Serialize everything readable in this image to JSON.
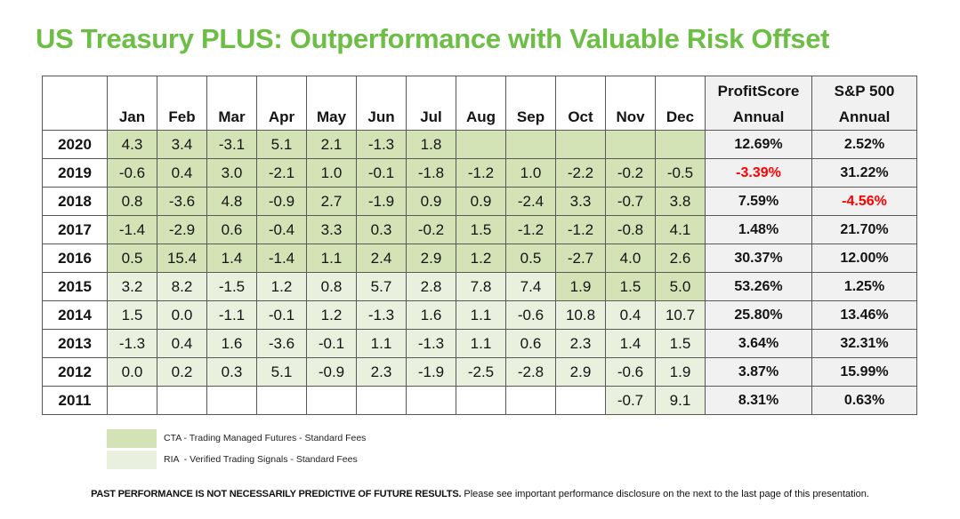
{
  "title": "US Treasury PLUS: Outperformance with Valuable Risk Offset",
  "colors": {
    "accent": "#6cbe45",
    "cta": "#d4e3b5",
    "ria": "#e9f0de",
    "annualbg": "#f1f1f1",
    "red": "#ff0000",
    "border": "#595959"
  },
  "table": {
    "month_headers": [
      "Jan",
      "Feb",
      "Mar",
      "Apr",
      "May",
      "Jun",
      "Jul",
      "Aug",
      "Sep",
      "Oct",
      "Nov",
      "Dec"
    ],
    "annual_headers": [
      {
        "line1": "ProfitScore",
        "line2": "Annual"
      },
      {
        "line1": "S&P 500",
        "line2": "Annual"
      }
    ]
  },
  "chart_data": {
    "type": "table",
    "title": "US Treasury PLUS: Outperformance with Valuable Risk Offset",
    "columns": [
      "Year",
      "Jan",
      "Feb",
      "Mar",
      "Apr",
      "May",
      "Jun",
      "Jul",
      "Aug",
      "Sep",
      "Oct",
      "Nov",
      "Dec",
      "ProfitScore Annual",
      "S&P 500 Annual"
    ],
    "shading_note": "cta = darker green fill, ria = lighter green fill, none = white",
    "rows": [
      {
        "year": "2020",
        "monthly": [
          4.3,
          3.4,
          -3.1,
          5.1,
          2.1,
          -1.3,
          1.8,
          null,
          null,
          null,
          null,
          null
        ],
        "shade": [
          "cta",
          "cta",
          "cta",
          "cta",
          "cta",
          "cta",
          "cta",
          "cta",
          "cta",
          "cta",
          "cta",
          "cta"
        ],
        "profitscore_annual": "12.69%",
        "sp500_annual": "2.52%"
      },
      {
        "year": "2019",
        "monthly": [
          -0.6,
          0.4,
          3.0,
          -2.1,
          1.0,
          -0.1,
          -1.8,
          -1.2,
          1.0,
          -2.2,
          -0.2,
          -0.5
        ],
        "shade": [
          "cta",
          "cta",
          "cta",
          "cta",
          "cta",
          "cta",
          "cta",
          "cta",
          "cta",
          "cta",
          "cta",
          "cta"
        ],
        "profitscore_annual": "-3.39%",
        "sp500_annual": "31.22%"
      },
      {
        "year": "2018",
        "monthly": [
          0.8,
          -3.6,
          4.8,
          -0.9,
          2.7,
          -1.9,
          0.9,
          0.9,
          -2.4,
          3.3,
          -0.7,
          3.8
        ],
        "shade": [
          "cta",
          "cta",
          "cta",
          "cta",
          "cta",
          "cta",
          "cta",
          "cta",
          "cta",
          "cta",
          "cta",
          "cta"
        ],
        "profitscore_annual": "7.59%",
        "sp500_annual": "-4.56%"
      },
      {
        "year": "2017",
        "monthly": [
          -1.4,
          -2.9,
          0.6,
          -0.4,
          3.3,
          0.3,
          -0.2,
          1.5,
          -1.2,
          -1.2,
          -0.8,
          4.1
        ],
        "shade": [
          "cta",
          "cta",
          "cta",
          "cta",
          "cta",
          "cta",
          "cta",
          "cta",
          "cta",
          "cta",
          "cta",
          "cta"
        ],
        "profitscore_annual": "1.48%",
        "sp500_annual": "21.70%"
      },
      {
        "year": "2016",
        "monthly": [
          0.5,
          15.4,
          1.4,
          -1.4,
          1.1,
          2.4,
          2.9,
          1.2,
          0.5,
          -2.7,
          4.0,
          2.6
        ],
        "shade": [
          "cta",
          "cta",
          "cta",
          "cta",
          "cta",
          "cta",
          "cta",
          "cta",
          "cta",
          "cta",
          "cta",
          "cta"
        ],
        "profitscore_annual": "30.37%",
        "sp500_annual": "12.00%"
      },
      {
        "year": "2015",
        "monthly": [
          3.2,
          8.2,
          -1.5,
          1.2,
          0.8,
          5.7,
          2.8,
          7.8,
          7.4,
          1.9,
          1.5,
          5.0
        ],
        "shade": [
          "ria",
          "ria",
          "ria",
          "ria",
          "ria",
          "ria",
          "ria",
          "ria",
          "ria",
          "cta",
          "cta",
          "cta"
        ],
        "profitscore_annual": "53.26%",
        "sp500_annual": "1.25%"
      },
      {
        "year": "2014",
        "monthly": [
          1.5,
          0.0,
          -1.1,
          -0.1,
          1.2,
          -1.3,
          1.6,
          1.1,
          -0.6,
          10.8,
          0.4,
          10.7
        ],
        "shade": [
          "ria",
          "ria",
          "ria",
          "ria",
          "ria",
          "ria",
          "ria",
          "ria",
          "ria",
          "ria",
          "ria",
          "ria"
        ],
        "profitscore_annual": "25.80%",
        "sp500_annual": "13.46%"
      },
      {
        "year": "2013",
        "monthly": [
          -1.3,
          0.4,
          1.6,
          -3.6,
          -0.1,
          1.1,
          -1.3,
          1.1,
          0.6,
          2.3,
          1.4,
          1.5
        ],
        "shade": [
          "ria",
          "ria",
          "ria",
          "ria",
          "ria",
          "ria",
          "ria",
          "ria",
          "ria",
          "ria",
          "ria",
          "ria"
        ],
        "profitscore_annual": "3.64%",
        "sp500_annual": "32.31%"
      },
      {
        "year": "2012",
        "monthly": [
          0.0,
          0.2,
          0.3,
          5.1,
          -0.9,
          2.3,
          -1.9,
          -2.5,
          -2.8,
          2.9,
          -0.6,
          1.9
        ],
        "shade": [
          "ria",
          "ria",
          "ria",
          "ria",
          "ria",
          "ria",
          "ria",
          "ria",
          "ria",
          "ria",
          "ria",
          "ria"
        ],
        "profitscore_annual": "3.87%",
        "sp500_annual": "15.99%"
      },
      {
        "year": "2011",
        "monthly": [
          null,
          null,
          null,
          null,
          null,
          null,
          null,
          null,
          null,
          null,
          -0.7,
          9.1
        ],
        "shade": [
          "none",
          "none",
          "none",
          "none",
          "none",
          "none",
          "none",
          "none",
          "none",
          "none",
          "ria",
          "ria"
        ],
        "profitscore_annual": "8.31%",
        "sp500_annual": "0.63%"
      }
    ]
  },
  "legend": [
    {
      "swatch": "cta",
      "label": "CTA - Trading Managed Futures - Standard Fees"
    },
    {
      "swatch": "ria",
      "label": "RIA  - Verified Trading Signals - Standard Fees"
    }
  ],
  "footer": {
    "bold": "PAST PERFORMANCE IS NOT NECESSARILY PREDICTIVE OF FUTURE RESULTS.",
    "regular": "Please see important performance disclosure on the next to the last page of this presentation."
  }
}
